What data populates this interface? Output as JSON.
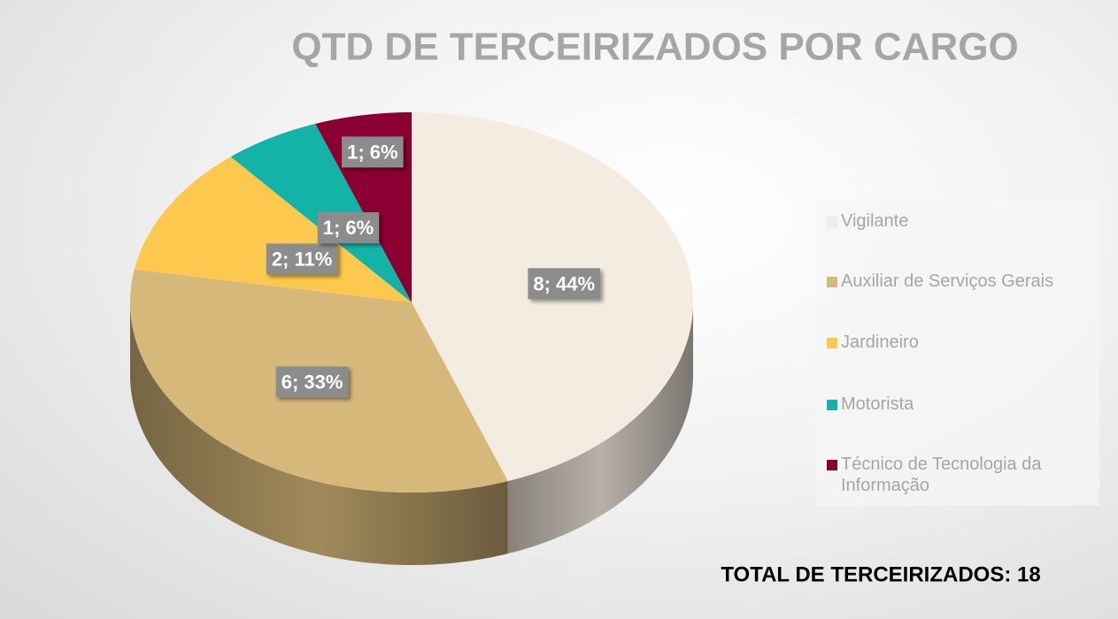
{
  "chart_data": {
    "type": "pie",
    "title": "QTD DE TERCEIRIZADOS POR CARGO",
    "categories": [
      "Vigilante",
      "Auxiliar de Serviços Gerais",
      "Jardineiro",
      "Motorista",
      "Técnico de Tecnologia da Informação"
    ],
    "values": [
      8,
      6,
      2,
      1,
      1
    ],
    "value_labels": [
      "8; 44%",
      "6; 33%",
      "2; 11%",
      "1; 6%",
      "1; 6%"
    ],
    "colors": [
      "#f4ece0",
      "#d6b87a",
      "#fdc84e",
      "#14b3a8",
      "#8a0033"
    ],
    "legend": "right",
    "annotation": "TOTAL DE TERCEIRIZADOS: 18"
  }
}
